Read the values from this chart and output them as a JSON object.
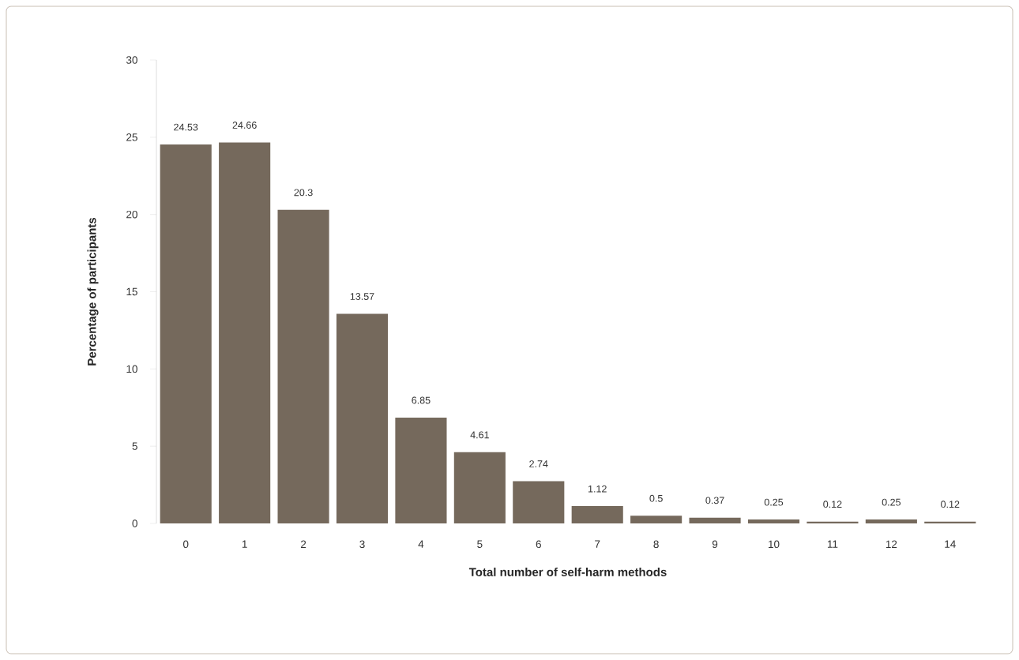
{
  "chart_data": {
    "type": "bar",
    "xlabel": "Total number of self-harm methods",
    "ylabel": "Percentage of participants",
    "categories": [
      "0",
      "1",
      "2",
      "3",
      "4",
      "5",
      "6",
      "7",
      "8",
      "9",
      "10",
      "11",
      "12",
      "14"
    ],
    "values": [
      24.53,
      24.66,
      20.3,
      13.57,
      6.85,
      4.61,
      2.74,
      1.12,
      0.5,
      0.37,
      0.25,
      0.12,
      0.25,
      0.12
    ],
    "color": "#75695c",
    "ylim": [
      0,
      30
    ],
    "yticks": [
      0,
      5,
      10,
      15,
      20,
      25,
      30
    ],
    "data_labels": true,
    "grid": false
  }
}
